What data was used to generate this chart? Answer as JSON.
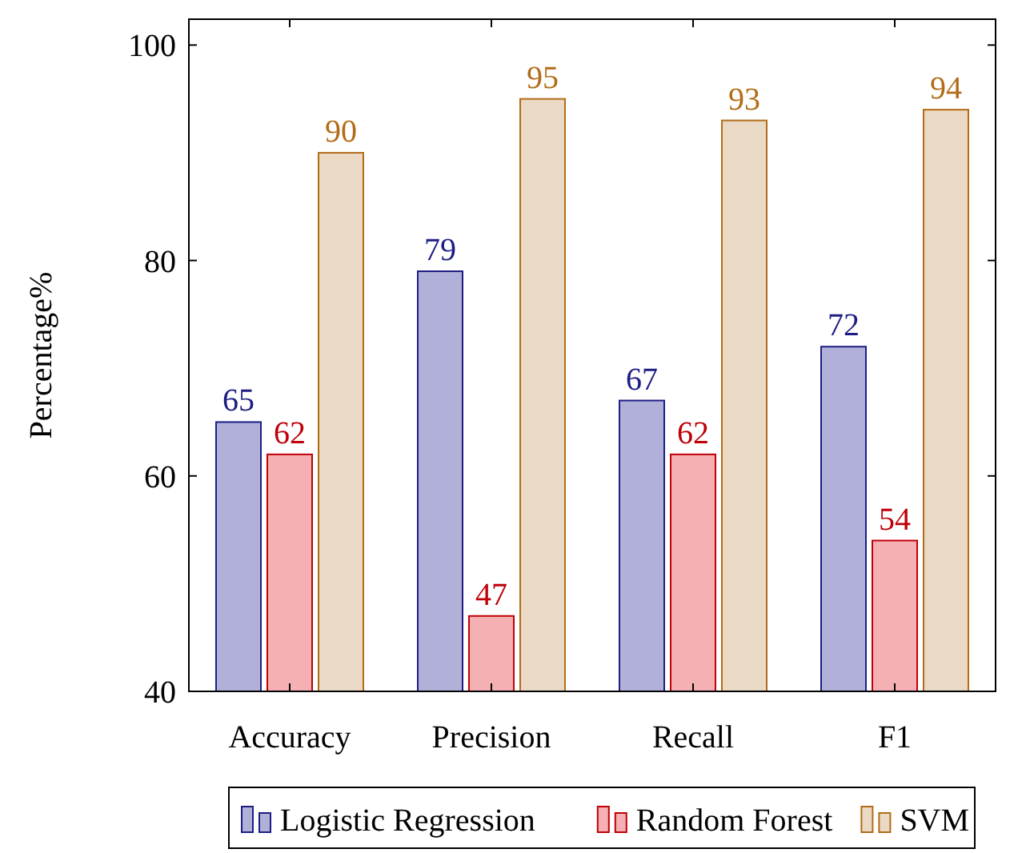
{
  "chart_data": {
    "type": "bar",
    "ylabel": "Percentage%",
    "categories": [
      "Accuracy",
      "Precision",
      "Recall",
      "F1"
    ],
    "series": [
      {
        "name": "Logistic Regression",
        "color": "#b0b0d8",
        "values": [
          65,
          79,
          67,
          72
        ]
      },
      {
        "name": "Random Forest",
        "color": "#f5b0b3",
        "values": [
          62,
          47,
          62,
          54
        ]
      },
      {
        "name": "SVM",
        "color": "#ead9c4",
        "values": [
          90,
          95,
          93,
          94
        ]
      }
    ],
    "ylim": [
      40,
      102.4
    ],
    "yticks": [
      40,
      60,
      80,
      100
    ],
    "data_labels": true,
    "legend": "bottom",
    "grid": false
  }
}
